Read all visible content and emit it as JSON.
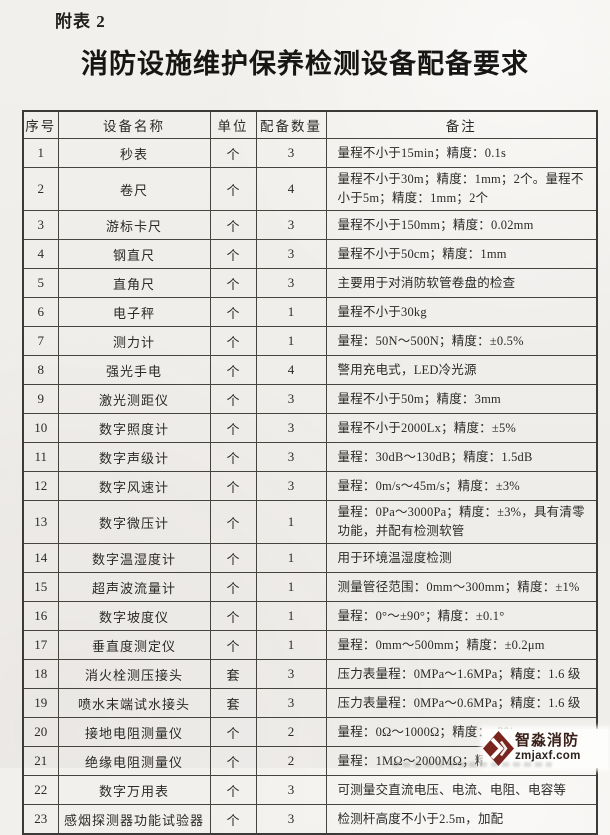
{
  "page": {
    "tag": "附表 2",
    "title": "消防设施维护保养检测设备配备要求"
  },
  "table": {
    "headers": [
      "序号",
      "设备名称",
      "单位",
      "配备数量",
      "备注"
    ],
    "rows": [
      {
        "no": "1",
        "name": "秒表",
        "unit": "个",
        "qty": "3",
        "note": "量程不小于15min；精度：0.1s"
      },
      {
        "no": "2",
        "name": "卷尺",
        "unit": "个",
        "qty": "4",
        "note": "量程不小于30m；精度：1mm；2个。量程不小于5m；精度：1mm；2个"
      },
      {
        "no": "3",
        "name": "游标卡尺",
        "unit": "个",
        "qty": "3",
        "note": "量程不小于150mm；精度：0.02mm"
      },
      {
        "no": "4",
        "name": "钢直尺",
        "unit": "个",
        "qty": "3",
        "note": "量程不小于50cm；精度：1mm"
      },
      {
        "no": "5",
        "name": "直角尺",
        "unit": "个",
        "qty": "3",
        "note": "主要用于对消防软管卷盘的检查"
      },
      {
        "no": "6",
        "name": "电子秤",
        "unit": "个",
        "qty": "1",
        "note": "量程不小于30kg"
      },
      {
        "no": "7",
        "name": "测力计",
        "unit": "个",
        "qty": "1",
        "note": "量程：50N～500N；精度：±0.5%"
      },
      {
        "no": "8",
        "name": "强光手电",
        "unit": "个",
        "qty": "4",
        "note": "警用充电式，LED冷光源"
      },
      {
        "no": "9",
        "name": "激光测距仪",
        "unit": "个",
        "qty": "3",
        "note": "量程不小于50m；精度：3mm"
      },
      {
        "no": "10",
        "name": "数字照度计",
        "unit": "个",
        "qty": "3",
        "note": "量程不小于2000Lx；精度：±5%"
      },
      {
        "no": "11",
        "name": "数字声级计",
        "unit": "个",
        "qty": "3",
        "note": "量程：30dB～130dB；精度：1.5dB"
      },
      {
        "no": "12",
        "name": "数字风速计",
        "unit": "个",
        "qty": "3",
        "note": "量程：0m/s～45m/s；精度：±3%"
      },
      {
        "no": "13",
        "name": "数字微压计",
        "unit": "个",
        "qty": "1",
        "note": "量程：0Pa～3000Pa；精度：±3%，具有清零功能，并配有检测软管"
      },
      {
        "no": "14",
        "name": "数字温湿度计",
        "unit": "个",
        "qty": "1",
        "note": "用于环境温湿度检测"
      },
      {
        "no": "15",
        "name": "超声波流量计",
        "unit": "个",
        "qty": "1",
        "note": "测量管径范围：0mm～300mm；精度：±1%"
      },
      {
        "no": "16",
        "name": "数字坡度仪",
        "unit": "个",
        "qty": "1",
        "note": "量程：0°～±90°；精度：±0.1°"
      },
      {
        "no": "17",
        "name": "垂直度测定仪",
        "unit": "个",
        "qty": "1",
        "note": "量程：0mm～500mm；精度：±0.2μm"
      },
      {
        "no": "18",
        "name": "消火栓测压接头",
        "unit": "套",
        "qty": "3",
        "note": "压力表量程：0MPa～1.6MPa；精度：1.6 级"
      },
      {
        "no": "19",
        "name": "喷水末端试水接头",
        "unit": "套",
        "qty": "3",
        "note": "压力表量程：0MPa～0.6MPa；精度：1.6 级"
      },
      {
        "no": "20",
        "name": "接地电阻测量仪",
        "unit": "个",
        "qty": "2",
        "note": "量程：0Ω～1000Ω；精度：±2%"
      },
      {
        "no": "21",
        "name": "绝缘电阻测量仪",
        "unit": "个",
        "qty": "2",
        "note": "量程：1MΩ～2000MΩ；精度：±2%"
      },
      {
        "no": "22",
        "name": "数字万用表",
        "unit": "个",
        "qty": "3",
        "note": "可测量交直流电压、电流、电阻、电容等"
      },
      {
        "no": "23",
        "name": "感烟探测器功能试验器",
        "unit": "个",
        "qty": "3",
        "note": "检测杆高度不小于2.5m，加配"
      }
    ]
  },
  "watermark": {
    "brand": "智淼消防",
    "url": "zmjaxf.com",
    "logo_color": "#7a241e"
  }
}
